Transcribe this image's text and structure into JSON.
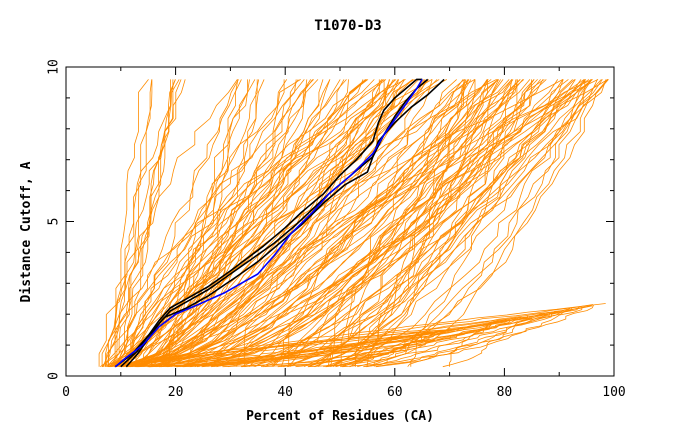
{
  "chart_data": {
    "type": "line",
    "title": "T1070-D3",
    "xlabel": "Percent of Residues (CA)",
    "ylabel": "Distance Cutoff, A",
    "xlim": [
      0,
      100
    ],
    "ylim": [
      0,
      10
    ],
    "x_ticks": [
      0,
      20,
      40,
      60,
      80,
      100
    ],
    "y_ticks": [
      0,
      5,
      10
    ],
    "grid": false,
    "colors": {
      "models": "#ff8c00",
      "highlight_black": "#000000",
      "highlight_blue": "#0000ff",
      "frame": "#000000"
    },
    "bundles": [
      {
        "name": "steep models",
        "count": 10,
        "start": [
          [
            6,
            0.3
          ],
          [
            9,
            0.3
          ]
        ],
        "end": [
          [
            14,
            9.6
          ],
          [
            22,
            9.6
          ]
        ]
      },
      {
        "name": "mid-left models",
        "count": 25,
        "start": [
          [
            6,
            0.3
          ],
          [
            12,
            0.3
          ]
        ],
        "end": [
          [
            30,
            9.6
          ],
          [
            50,
            9.6
          ]
        ]
      },
      {
        "name": "central models",
        "count": 45,
        "start": [
          [
            6,
            0.3
          ],
          [
            18,
            0.3
          ]
        ],
        "end": [
          [
            50,
            9.6
          ],
          [
            75,
            9.6
          ]
        ]
      },
      {
        "name": "right models",
        "count": 70,
        "start": [
          [
            8,
            0.3
          ],
          [
            55,
            0.3
          ]
        ],
        "end": [
          [
            72,
            9.6
          ],
          [
            100,
            9.6
          ]
        ]
      },
      {
        "name": "low flat models",
        "count": 40,
        "start": [
          [
            6,
            0.3
          ],
          [
            70,
            0.3
          ]
        ],
        "end": [
          [
            60,
            1.2
          ],
          [
            100,
            2.4
          ]
        ]
      }
    ],
    "highlight_series": [
      {
        "name": "black model 1",
        "color": "#000000",
        "x": [
          10,
          13,
          15,
          17,
          19,
          22,
          26,
          30,
          33,
          36,
          40,
          43,
          47,
          50,
          53,
          56,
          57,
          58,
          60,
          62,
          64,
          65
        ],
        "y": [
          0.3,
          0.8,
          1.3,
          1.8,
          2.2,
          2.5,
          2.9,
          3.4,
          3.8,
          4.2,
          4.8,
          5.3,
          5.9,
          6.5,
          7.0,
          7.6,
          8.2,
          8.6,
          9.0,
          9.3,
          9.6,
          9.6
        ]
      },
      {
        "name": "black model 2",
        "color": "#000000",
        "x": [
          11,
          13,
          15,
          17,
          19,
          22,
          26,
          30,
          34,
          38,
          42,
          45,
          48,
          52,
          56,
          58,
          60,
          62,
          64,
          66
        ],
        "y": [
          0.3,
          0.7,
          1.2,
          1.7,
          2.1,
          2.4,
          2.8,
          3.3,
          3.8,
          4.3,
          4.9,
          5.4,
          5.9,
          6.5,
          7.1,
          7.8,
          8.4,
          8.9,
          9.3,
          9.6
        ]
      },
      {
        "name": "black model 3",
        "color": "#000000",
        "x": [
          9,
          12,
          14,
          16,
          18,
          22,
          26,
          31,
          35,
          39,
          43,
          47,
          51,
          55,
          57,
          60,
          63,
          66,
          69
        ],
        "y": [
          0.3,
          0.7,
          1.1,
          1.5,
          1.9,
          2.2,
          2.6,
          3.2,
          3.7,
          4.3,
          4.9,
          5.6,
          6.2,
          6.6,
          7.6,
          8.2,
          8.7,
          9.1,
          9.6
        ]
      },
      {
        "name": "blue model",
        "color": "#0000ff",
        "x": [
          9,
          11,
          14,
          17,
          20,
          24,
          29,
          35,
          38,
          41,
          45,
          48,
          52,
          56,
          58,
          60,
          62,
          64,
          65
        ],
        "y": [
          0.3,
          0.6,
          1.0,
          1.6,
          2.0,
          2.3,
          2.7,
          3.3,
          3.9,
          4.6,
          5.3,
          5.9,
          6.5,
          7.2,
          7.8,
          8.3,
          8.8,
          9.3,
          9.6
        ]
      }
    ]
  }
}
